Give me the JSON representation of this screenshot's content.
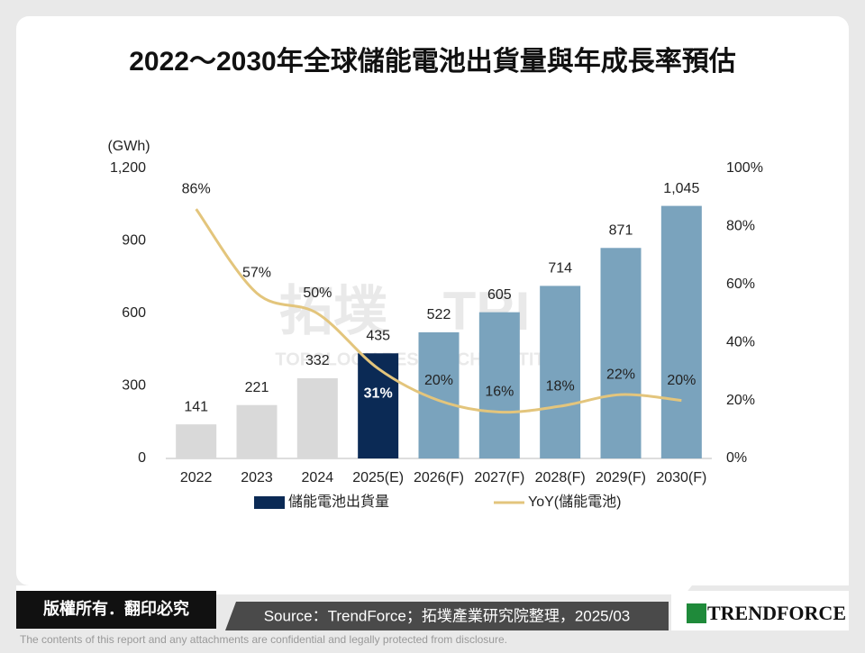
{
  "chart_data": {
    "type": "bar",
    "title": "2022～2030年全球儲能電池出貨量與年成長率預估",
    "y_unit": "(GWh)",
    "categories": [
      "2022",
      "2023",
      "2024",
      "2025(E)",
      "2026(F)",
      "2027(F)",
      "2028(F)",
      "2029(F)",
      "2030(F)"
    ],
    "series": [
      {
        "name": "儲能電池出貨量",
        "type": "bar",
        "color": "#0b2a55",
        "colors": [
          "#d9d9d9",
          "#d9d9d9",
          "#d9d9d9",
          "#0b2a55",
          "#7aa3bd",
          "#7aa3bd",
          "#7aa3bd",
          "#7aa3bd",
          "#7aa3bd"
        ],
        "values": [
          141,
          221,
          332,
          435,
          522,
          605,
          714,
          871,
          1045
        ],
        "value_labels": [
          "141",
          "221",
          "332",
          "435",
          "522",
          "605",
          "714",
          "871",
          "1,045"
        ]
      },
      {
        "name": "YoY(儲能電池)",
        "type": "line",
        "axis": "y2",
        "color": "#e3c57c",
        "values": [
          86,
          57,
          50,
          31,
          20,
          16,
          18,
          22,
          20
        ],
        "value_labels": [
          "86%",
          "57%",
          "50%",
          "31%",
          "20%",
          "16%",
          "18%",
          "22%",
          "20%"
        ]
      }
    ],
    "ylim": [
      0,
      1200
    ],
    "yticks": [
      0,
      300,
      600,
      900,
      {
        "value": 1200,
        "label": "1,200"
      }
    ],
    "y2lim": [
      0,
      100
    ],
    "y2ticks": [
      {
        "value": 0,
        "label": "0%"
      },
      {
        "value": 20,
        "label": "20%"
      },
      {
        "value": 40,
        "label": "40%"
      },
      {
        "value": 60,
        "label": "60%"
      },
      {
        "value": 80,
        "label": "80%"
      },
      {
        "value": 100,
        "label": "100%"
      }
    ],
    "grid": false,
    "legend": "bottom"
  },
  "watermark": [
    "拓墣",
    "TRI",
    "TOPOLOGY RESEARCH INSTITUTE"
  ],
  "footer": {
    "copyright": "版權所有．翻印必究",
    "source": "Source：TrendForce；拓墣產業研究院整理，2025/03",
    "logo": "TRENDFORCE",
    "disclaimer": "The contents of this report and any attachments are confidential and legally protected from disclosure."
  }
}
